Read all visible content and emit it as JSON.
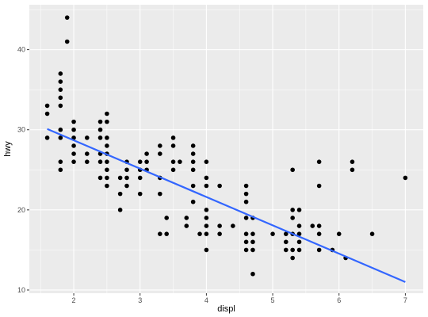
{
  "chart_data": {
    "type": "scatter",
    "xlabel": "displ",
    "ylabel": "hwy",
    "xlim": [
      1.33,
      7.27
    ],
    "ylim": [
      9.6,
      45.6
    ],
    "x_ticks": [
      2,
      3,
      4,
      5,
      6,
      7
    ],
    "y_ticks": [
      10,
      20,
      30,
      40
    ],
    "x_tick_labels": [
      "2",
      "3",
      "4",
      "5",
      "6",
      "7"
    ],
    "y_tick_labels": [
      "10",
      "20",
      "30",
      "40"
    ],
    "grid": true,
    "legend": "none",
    "colors": {
      "panel_bg": "#ebebeb",
      "grid": "#ffffff",
      "points": "#000000",
      "fit_line": "#3366ff"
    },
    "points": [
      [
        1.6,
        33
      ],
      [
        1.6,
        32
      ],
      [
        1.6,
        29
      ],
      [
        1.8,
        37
      ],
      [
        1.8,
        36
      ],
      [
        1.8,
        35
      ],
      [
        1.8,
        34
      ],
      [
        1.8,
        33
      ],
      [
        1.8,
        30
      ],
      [
        1.8,
        29
      ],
      [
        1.8,
        26
      ],
      [
        1.8,
        25
      ],
      [
        1.9,
        44
      ],
      [
        1.9,
        41
      ],
      [
        2.0,
        31
      ],
      [
        2.0,
        30
      ],
      [
        2.0,
        29
      ],
      [
        2.0,
        28
      ],
      [
        2.0,
        27
      ],
      [
        2.0,
        26
      ],
      [
        2.2,
        29
      ],
      [
        2.2,
        27
      ],
      [
        2.2,
        26
      ],
      [
        2.4,
        31
      ],
      [
        2.4,
        30
      ],
      [
        2.4,
        29
      ],
      [
        2.4,
        27
      ],
      [
        2.4,
        26
      ],
      [
        2.4,
        24
      ],
      [
        2.5,
        32
      ],
      [
        2.5,
        31
      ],
      [
        2.5,
        29
      ],
      [
        2.5,
        28
      ],
      [
        2.5,
        27
      ],
      [
        2.5,
        26
      ],
      [
        2.5,
        25
      ],
      [
        2.5,
        24
      ],
      [
        2.5,
        23
      ],
      [
        2.7,
        24
      ],
      [
        2.7,
        22
      ],
      [
        2.7,
        20
      ],
      [
        2.8,
        26
      ],
      [
        2.8,
        25
      ],
      [
        2.8,
        24
      ],
      [
        2.8,
        23
      ],
      [
        3.0,
        26
      ],
      [
        3.0,
        25
      ],
      [
        3.0,
        24
      ],
      [
        3.0,
        22
      ],
      [
        3.1,
        27
      ],
      [
        3.1,
        26
      ],
      [
        3.1,
        25
      ],
      [
        3.3,
        28
      ],
      [
        3.3,
        27
      ],
      [
        3.3,
        24
      ],
      [
        3.3,
        22
      ],
      [
        3.3,
        17
      ],
      [
        3.4,
        19
      ],
      [
        3.4,
        17
      ],
      [
        3.5,
        29
      ],
      [
        3.5,
        28
      ],
      [
        3.5,
        26
      ],
      [
        3.5,
        25
      ],
      [
        3.6,
        26
      ],
      [
        3.7,
        19
      ],
      [
        3.7,
        18
      ],
      [
        3.8,
        28
      ],
      [
        3.8,
        27
      ],
      [
        3.8,
        26
      ],
      [
        3.8,
        25
      ],
      [
        3.8,
        23
      ],
      [
        3.8,
        21
      ],
      [
        3.9,
        17
      ],
      [
        4.0,
        26
      ],
      [
        4.0,
        24
      ],
      [
        4.0,
        23
      ],
      [
        4.0,
        20
      ],
      [
        4.0,
        19
      ],
      [
        4.0,
        18
      ],
      [
        4.0,
        17
      ],
      [
        4.0,
        15
      ],
      [
        4.2,
        23
      ],
      [
        4.2,
        18
      ],
      [
        4.2,
        17
      ],
      [
        4.4,
        18
      ],
      [
        4.6,
        23
      ],
      [
        4.6,
        22
      ],
      [
        4.6,
        21
      ],
      [
        4.6,
        19
      ],
      [
        4.6,
        17
      ],
      [
        4.6,
        16
      ],
      [
        4.6,
        15
      ],
      [
        4.7,
        19
      ],
      [
        4.7,
        17
      ],
      [
        4.7,
        16
      ],
      [
        4.7,
        15
      ],
      [
        4.7,
        12
      ],
      [
        5.0,
        17
      ],
      [
        5.2,
        17
      ],
      [
        5.2,
        16
      ],
      [
        5.2,
        15
      ],
      [
        5.3,
        25
      ],
      [
        5.3,
        20
      ],
      [
        5.3,
        19
      ],
      [
        5.3,
        17
      ],
      [
        5.3,
        15
      ],
      [
        5.3,
        14
      ],
      [
        5.4,
        20
      ],
      [
        5.4,
        18
      ],
      [
        5.4,
        17
      ],
      [
        5.4,
        16
      ],
      [
        5.4,
        15
      ],
      [
        5.6,
        18
      ],
      [
        5.7,
        26
      ],
      [
        5.7,
        23
      ],
      [
        5.7,
        18
      ],
      [
        5.7,
        17
      ],
      [
        5.7,
        15
      ],
      [
        5.9,
        15
      ],
      [
        6.0,
        17
      ],
      [
        6.1,
        14
      ],
      [
        6.2,
        26
      ],
      [
        6.2,
        25
      ],
      [
        6.5,
        17
      ],
      [
        7.0,
        24
      ]
    ],
    "fit_line": {
      "x": [
        1.6,
        7.0
      ],
      "y": [
        30.1,
        11.0
      ]
    }
  }
}
